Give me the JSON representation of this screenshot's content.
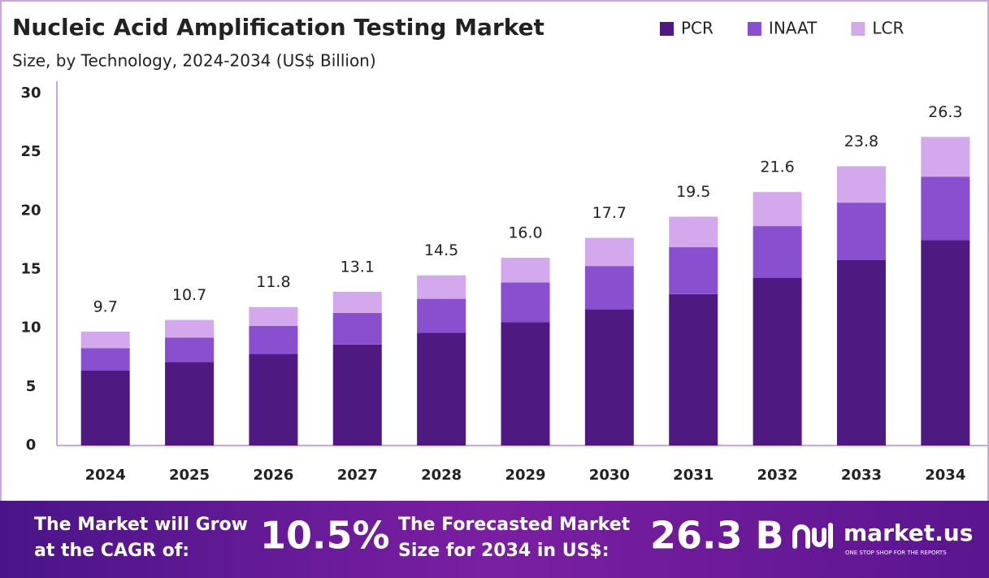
{
  "chart_data": {
    "type": "stacked_bar",
    "title": "Nucleic Acid Amplification Testing Market",
    "subtitle": "Size, by Technology, 2024-2034 (US$ Billion)",
    "categories": [
      "2024",
      "2025",
      "2026",
      "2027",
      "2028",
      "2029",
      "2030",
      "2031",
      "2032",
      "2033",
      "2034"
    ],
    "series": [
      {
        "name": "PCR",
        "color": "#4e1a82",
        "values": [
          6.4,
          7.1,
          7.8,
          8.6,
          9.6,
          10.5,
          11.6,
          12.9,
          14.3,
          15.8,
          17.5
        ]
      },
      {
        "name": "INAAT",
        "color": "#8a4fcf",
        "values": [
          1.9,
          2.1,
          2.4,
          2.7,
          2.9,
          3.4,
          3.7,
          4.0,
          4.4,
          4.9,
          5.4
        ]
      },
      {
        "name": "LCR",
        "color": "#d4a8ec",
        "values": [
          1.4,
          1.5,
          1.6,
          1.8,
          2.0,
          2.1,
          2.4,
          2.6,
          2.9,
          3.1,
          3.4
        ]
      }
    ],
    "totals": {
      "values": [
        9.7,
        10.7,
        11.8,
        13.1,
        14.5,
        16.0,
        17.7,
        19.5,
        21.6,
        23.8,
        26.3
      ],
      "value_labels": [
        "9.7",
        "10.7",
        "11.8",
        "13.1",
        "14.5",
        "16.0",
        "17.7",
        "19.5",
        "21.6",
        "23.8",
        "26.3"
      ]
    },
    "ylim": [
      0,
      30
    ],
    "yticks": [
      0,
      5,
      10,
      15,
      20,
      25,
      30
    ],
    "grid": false,
    "legend": "top-right"
  },
  "banner": {
    "cagr_label": [
      "The Market will Grow",
      "at the CAGR of:"
    ],
    "cagr_value": "10.5%",
    "forecast_label": [
      "The Forecasted Market",
      "Size for 2034 in US$:"
    ],
    "forecast_value": "26.3 B",
    "brand": "market.us",
    "tagline": "ONE STOP SHOP FOR THE REPORTS"
  }
}
